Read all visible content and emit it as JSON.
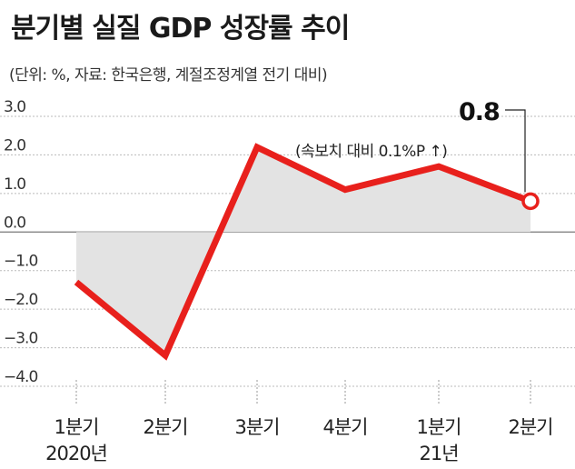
{
  "title": "분기별 실질 GDP 성장률 추이",
  "subtitle": "(단위: %, 자료: 한국은행, 계절조정계열 전기 대비)",
  "chart_data": {
    "type": "area",
    "categories": [
      "1분기",
      "2분기",
      "3분기",
      "4분기",
      "1분기",
      "2분기"
    ],
    "year_labels": [
      "2020년",
      "",
      "",
      "",
      "21년",
      ""
    ],
    "values": [
      -1.3,
      -3.2,
      2.2,
      1.1,
      1.7,
      0.8
    ],
    "ylim": [
      -4.0,
      3.0
    ],
    "yticks": [
      "3.0",
      "2.0",
      "1.0",
      "0.0",
      "−1.0",
      "−2.0",
      "−3.0",
      "−4.0"
    ],
    "grid": true,
    "annotation": {
      "value": "0.8",
      "note": "(속보치 대비 0.1%P ↑)"
    },
    "colors": {
      "line": "#e8201c",
      "area": "#e3e3e3",
      "grid": "#bbbbbb",
      "zero_line": "#777777"
    }
  }
}
